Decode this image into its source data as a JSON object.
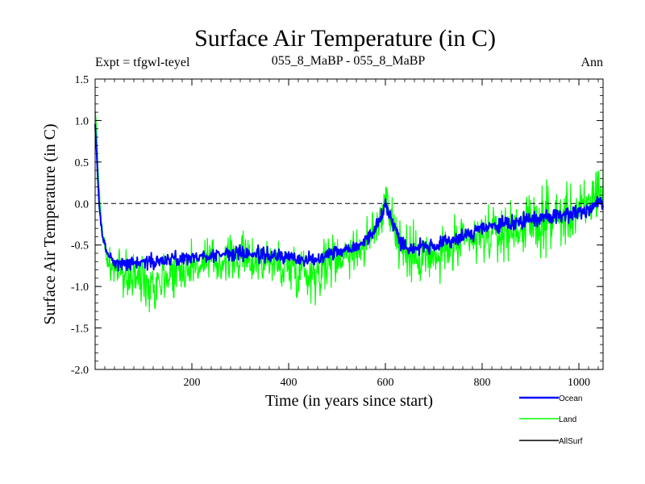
{
  "header": {
    "title": "Surface Air Temperature (in C)",
    "experiment": "Expt = tfgwl-teyel",
    "subtitle": "055_8_MaBP - 055_8_MaBP",
    "period": "Ann"
  },
  "chart_data": {
    "type": "line",
    "title": "Surface Air Temperature (in C)",
    "xlabel": "Time (in years since start)",
    "ylabel": "Surface Air Temperature (in C)",
    "xlim": [
      0,
      1050
    ],
    "ylim": [
      -2.0,
      1.5
    ],
    "x_ticks": [
      200,
      400,
      600,
      800,
      1000
    ],
    "x_tick_labels": [
      "200",
      "400",
      "600",
      "800",
      "1000"
    ],
    "y_ticks": [
      -2.0,
      -1.5,
      -1.0,
      -0.5,
      0.0,
      0.5,
      1.0,
      1.5
    ],
    "y_tick_labels": [
      "-2.0",
      "-1.5",
      "-1.0",
      "-0.5",
      "0.0",
      "0.5",
      "1.0",
      "1.5"
    ],
    "reference_line": {
      "y": 0.0,
      "style": "dashed"
    },
    "legend": [
      "Ocean",
      "Land",
      "AllSurf"
    ],
    "series": [
      {
        "name": "Land",
        "color": "#00ff00",
        "x": [
          0,
          3,
          8,
          15,
          25,
          40,
          60,
          80,
          100,
          120,
          150,
          200,
          250,
          300,
          350,
          400,
          430,
          450,
          480,
          520,
          560,
          590,
          600,
          610,
          630,
          650,
          680,
          700,
          730,
          760,
          800,
          850,
          900,
          940,
          980,
          1020,
          1040,
          1050
        ],
        "y": [
          1.15,
          0.85,
          0.2,
          -0.35,
          -0.7,
          -0.8,
          -0.85,
          -0.9,
          -0.9,
          -0.95,
          -0.85,
          -0.75,
          -0.7,
          -0.65,
          -0.7,
          -0.75,
          -0.8,
          -0.85,
          -0.7,
          -0.6,
          -0.5,
          -0.2,
          0.15,
          -0.1,
          -0.5,
          -0.65,
          -0.6,
          -0.7,
          -0.55,
          -0.5,
          -0.4,
          -0.35,
          -0.25,
          -0.2,
          -0.15,
          -0.05,
          0.2,
          0.1
        ],
        "amplitude": [
          0.05,
          0.1,
          0.1,
          0.15,
          0.25,
          0.35,
          0.4,
          0.45,
          0.45,
          0.5,
          0.45,
          0.4,
          0.4,
          0.4,
          0.4,
          0.45,
          0.5,
          0.5,
          0.45,
          0.4,
          0.4,
          0.45,
          0.5,
          0.45,
          0.5,
          0.5,
          0.45,
          0.5,
          0.45,
          0.45,
          0.45,
          0.45,
          0.5,
          0.55,
          0.5,
          0.5,
          0.55,
          0.5
        ]
      },
      {
        "name": "Ocean",
        "color": "#0000ff",
        "x": [
          0,
          3,
          8,
          15,
          25,
          40,
          60,
          80,
          100,
          120,
          150,
          200,
          250,
          300,
          350,
          400,
          430,
          450,
          480,
          520,
          560,
          590,
          600,
          610,
          630,
          650,
          680,
          700,
          730,
          760,
          800,
          850,
          900,
          940,
          980,
          1020,
          1040,
          1050
        ],
        "y": [
          0.95,
          0.6,
          0.0,
          -0.4,
          -0.6,
          -0.7,
          -0.72,
          -0.72,
          -0.7,
          -0.7,
          -0.68,
          -0.65,
          -0.62,
          -0.6,
          -0.62,
          -0.65,
          -0.68,
          -0.68,
          -0.6,
          -0.55,
          -0.45,
          -0.2,
          0.0,
          -0.15,
          -0.45,
          -0.55,
          -0.5,
          -0.55,
          -0.45,
          -0.4,
          -0.3,
          -0.25,
          -0.2,
          -0.15,
          -0.12,
          -0.08,
          0.05,
          0.0
        ],
        "amplitude": [
          0.02,
          0.05,
          0.05,
          0.06,
          0.08,
          0.1,
          0.12,
          0.12,
          0.12,
          0.13,
          0.12,
          0.12,
          0.12,
          0.12,
          0.12,
          0.12,
          0.13,
          0.13,
          0.12,
          0.12,
          0.12,
          0.13,
          0.14,
          0.13,
          0.13,
          0.13,
          0.13,
          0.13,
          0.13,
          0.13,
          0.13,
          0.13,
          0.13,
          0.14,
          0.14,
          0.14,
          0.15,
          0.14
        ]
      },
      {
        "name": "AllSurf",
        "color": "#000000",
        "x": [],
        "y": []
      }
    ]
  }
}
